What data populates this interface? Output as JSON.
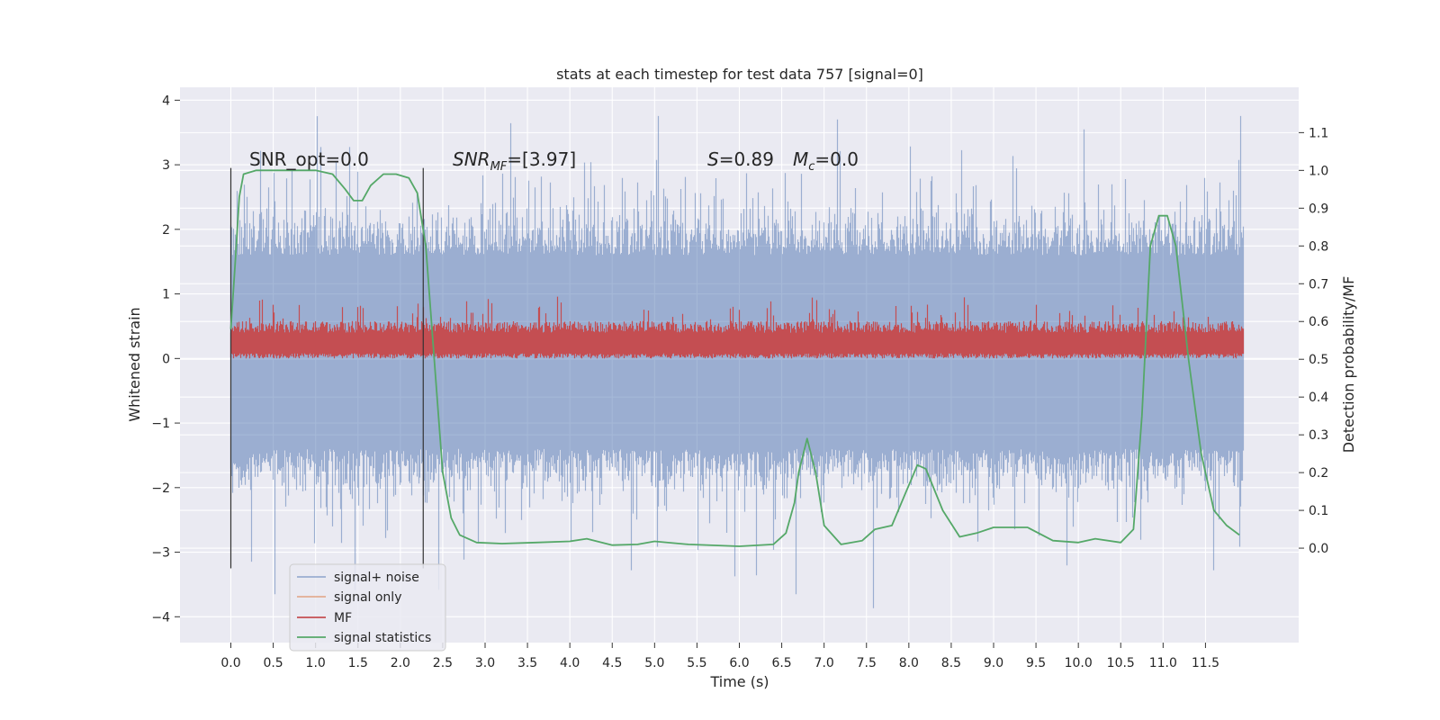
{
  "chart_data": {
    "type": "line",
    "title": "stats at each timestep for test data 757 [signal=0]",
    "xlabel": "Time (s)",
    "ylabel": "Whitened strain",
    "ylabel_right": "Detection probability/MF",
    "xlim": [
      -0.6,
      12.6
    ],
    "ylim": [
      -4.4,
      4.2
    ],
    "ylim_right": [
      -0.25,
      1.22
    ],
    "x_ticks": [
      0.0,
      0.5,
      1.0,
      1.5,
      2.0,
      2.5,
      3.0,
      3.5,
      4.0,
      4.5,
      5.0,
      5.5,
      6.0,
      6.5,
      7.0,
      7.5,
      8.0,
      8.5,
      9.0,
      9.5,
      10.0,
      10.5,
      11.0,
      11.5
    ],
    "x_tick_labels": [
      "0.0",
      "0.5",
      "1.0",
      "1.5",
      "2.0",
      "2.5",
      "3.0",
      "3.5",
      "4.0",
      "4.5",
      "5.0",
      "5.5",
      "6.0",
      "6.5",
      "7.0",
      "7.5",
      "8.0",
      "8.5",
      "9.0",
      "9.5",
      "10.0",
      "10.5",
      "11.0",
      "11.5"
    ],
    "y_ticks": [
      -4,
      -3,
      -2,
      -1,
      0,
      1,
      2,
      3,
      4
    ],
    "y_tick_labels": [
      "−4",
      "−3",
      "−2",
      "−1",
      "0",
      "1",
      "2",
      "3",
      "4"
    ],
    "y_right_ticks": [
      0.0,
      0.1,
      0.2,
      0.3,
      0.4,
      0.5,
      0.6,
      0.7,
      0.8,
      0.9,
      1.0,
      1.1
    ],
    "y_right_tick_labels": [
      "0.0",
      "0.1",
      "0.2",
      "0.3",
      "0.4",
      "0.5",
      "0.6",
      "0.7",
      "0.8",
      "0.9",
      "1.0",
      "1.1"
    ],
    "grid": true,
    "legend_position": "lower-left",
    "series": [
      {
        "name": "signal+ noise",
        "axis": "left",
        "color": "#4c72b0",
        "x_range": [
          0.0,
          11.95
        ],
        "envelope_typical": [
          -1.4,
          1.6
        ],
        "envelope_peaks": [
          -3.9,
          3.8
        ]
      },
      {
        "name": "signal only",
        "axis": "left",
        "color": "#dd8452"
      },
      {
        "name": "MF",
        "axis": "left",
        "color": "#c44e52",
        "x_range": [
          0.0,
          11.95
        ],
        "envelope_typical": [
          0.0,
          0.5
        ],
        "envelope_peaks": [
          0.0,
          1.0
        ]
      },
      {
        "name": "signal statistics",
        "axis": "right",
        "color": "#55a868",
        "x": [
          0.0,
          0.05,
          0.1,
          0.15,
          0.3,
          0.5,
          0.8,
          1.0,
          1.2,
          1.35,
          1.45,
          1.55,
          1.65,
          1.8,
          1.95,
          2.1,
          2.2,
          2.3,
          2.4,
          2.5,
          2.6,
          2.7,
          2.9,
          3.2,
          3.6,
          4.0,
          4.2,
          4.5,
          4.8,
          5.0,
          5.4,
          6.0,
          6.4,
          6.55,
          6.65,
          6.7,
          6.8,
          6.9,
          7.0,
          7.2,
          7.45,
          7.6,
          7.8,
          7.95,
          8.1,
          8.2,
          8.4,
          8.6,
          8.8,
          9.0,
          9.2,
          9.4,
          9.7,
          10.0,
          10.2,
          10.5,
          10.65,
          10.75,
          10.85,
          10.95,
          11.05,
          11.15,
          11.3,
          11.45,
          11.6,
          11.75,
          11.9
        ],
        "values": [
          0.58,
          0.75,
          0.93,
          0.99,
          1.0,
          1.0,
          1.0,
          1.0,
          0.99,
          0.95,
          0.92,
          0.92,
          0.96,
          0.99,
          0.99,
          0.98,
          0.94,
          0.8,
          0.5,
          0.2,
          0.08,
          0.035,
          0.015,
          0.012,
          0.015,
          0.018,
          0.025,
          0.008,
          0.01,
          0.018,
          0.01,
          0.005,
          0.01,
          0.04,
          0.12,
          0.2,
          0.29,
          0.2,
          0.06,
          0.01,
          0.02,
          0.05,
          0.06,
          0.14,
          0.22,
          0.21,
          0.1,
          0.03,
          0.04,
          0.055,
          0.055,
          0.055,
          0.02,
          0.015,
          0.025,
          0.015,
          0.05,
          0.35,
          0.8,
          0.88,
          0.88,
          0.8,
          0.5,
          0.25,
          0.1,
          0.06,
          0.035
        ]
      }
    ],
    "vertical_markers": [
      0.0,
      2.27
    ],
    "annotations": [
      {
        "text": "SNR_opt=0.0"
      },
      {
        "text": "SNR",
        "sub": "MF",
        "rest": "=[3.97]"
      },
      {
        "text": "S",
        "rest": "=0.89"
      },
      {
        "text": "M",
        "sub": "c",
        "rest": "=0.0"
      }
    ]
  }
}
